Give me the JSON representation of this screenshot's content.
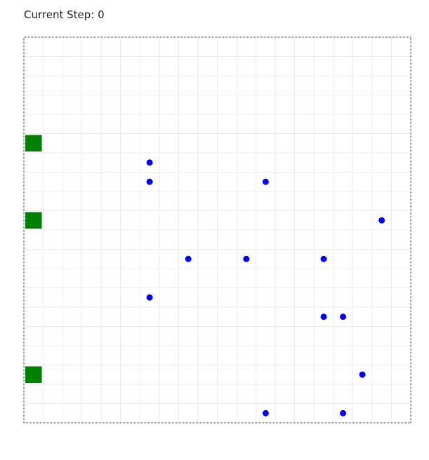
{
  "status": {
    "label": "Current Step: 0"
  },
  "grid": {
    "cols": 20,
    "rows": 20
  },
  "targets": [
    {
      "col": 0,
      "row": 5
    },
    {
      "col": 0,
      "row": 9
    },
    {
      "col": 0,
      "row": 17
    }
  ],
  "agents": [
    {
      "col": 6,
      "row": 6
    },
    {
      "col": 6,
      "row": 7
    },
    {
      "col": 12,
      "row": 7
    },
    {
      "col": 18,
      "row": 9
    },
    {
      "col": 8,
      "row": 11
    },
    {
      "col": 11,
      "row": 11
    },
    {
      "col": 15,
      "row": 11
    },
    {
      "col": 6,
      "row": 13
    },
    {
      "col": 15,
      "row": 14
    },
    {
      "col": 16,
      "row": 14
    },
    {
      "col": 17,
      "row": 17
    },
    {
      "col": 12,
      "row": 19
    },
    {
      "col": 16,
      "row": 19
    }
  ]
}
